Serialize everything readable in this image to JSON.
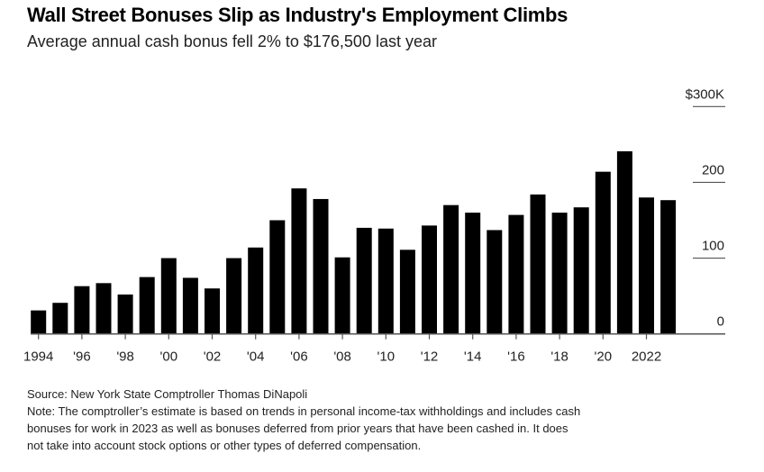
{
  "chart_data": {
    "type": "bar",
    "title": "Wall Street Bonuses Slip as Industry's Employment Climbs",
    "subtitle": "Average annual cash bonus fell 2% to $176,500 last year",
    "categories": [
      1994,
      1995,
      1996,
      1997,
      1998,
      1999,
      2000,
      2001,
      2002,
      2003,
      2004,
      2005,
      2006,
      2007,
      2008,
      2009,
      2010,
      2011,
      2012,
      2013,
      2014,
      2015,
      2016,
      2017,
      2018,
      2019,
      2020,
      2021,
      2022,
      2023
    ],
    "values": [
      31,
      41,
      63,
      67,
      52,
      75,
      100,
      74,
      60,
      100,
      114,
      150,
      192,
      178,
      101,
      140,
      139,
      111,
      143,
      170,
      160,
      137,
      157,
      184,
      160,
      167,
      214,
      241,
      180,
      176.5
    ],
    "value_unit": "thousands USD",
    "ylim": [
      0,
      300
    ],
    "y_ticks": [
      {
        "value": 0,
        "label": "0"
      },
      {
        "value": 100,
        "label": "100"
      },
      {
        "value": 200,
        "label": "200"
      },
      {
        "value": 300,
        "label": "$300K"
      }
    ],
    "x_ticks": [
      {
        "year": 1994,
        "label": "1994"
      },
      {
        "year": 1996,
        "label": "'96"
      },
      {
        "year": 1998,
        "label": "'98"
      },
      {
        "year": 2000,
        "label": "'00"
      },
      {
        "year": 2002,
        "label": "'02"
      },
      {
        "year": 2004,
        "label": "'04"
      },
      {
        "year": 2006,
        "label": "'06"
      },
      {
        "year": 2008,
        "label": "'08"
      },
      {
        "year": 2010,
        "label": "'10"
      },
      {
        "year": 2012,
        "label": "'12"
      },
      {
        "year": 2014,
        "label": "'14"
      },
      {
        "year": 2016,
        "label": "'16"
      },
      {
        "year": 2018,
        "label": "'18"
      },
      {
        "year": 2020,
        "label": "'20"
      },
      {
        "year": 2022,
        "label": "2022"
      }
    ],
    "grid": true,
    "bar_color": "#000000",
    "axis_position": "right"
  },
  "footer": {
    "source": "Source: New York State Comptroller Thomas DiNapoli",
    "note_lines": [
      "Note: The comptroller’s estimate is based on trends in personal income-tax withholdings and includes cash",
      "bonuses for work in 2023 as well as bonuses deferred from prior years that have been cashed in. It does",
      "not take into account stock options or other types of deferred compensation."
    ]
  }
}
